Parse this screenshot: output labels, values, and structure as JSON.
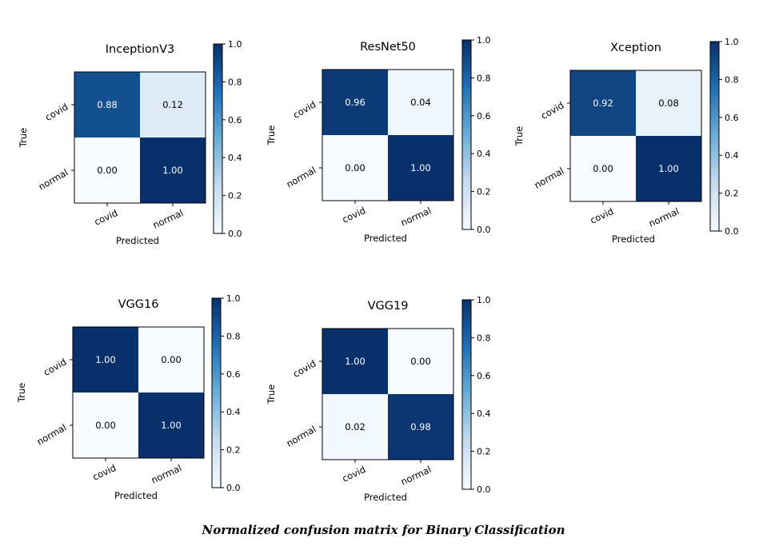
{
  "figure_caption": "Normalized confusion matrix for Binary Classification",
  "colors": {
    "cmap_low": "#f7fbff",
    "cmap_q1": "#c6dbef",
    "cmap_mid": "#6baed6",
    "cmap_q3": "#2171b5",
    "cmap_high": "#08306b",
    "light_text": "#ffffff",
    "dark_text": "#000000"
  },
  "chart_data": [
    {
      "type": "heatmap",
      "title": "InceptionV3",
      "xlabel": "Predicted",
      "ylabel": "True",
      "x_tick_labels": [
        "covid",
        "normal"
      ],
      "y_tick_labels": [
        "covid",
        "normal"
      ],
      "values": [
        [
          0.88,
          0.12
        ],
        [
          0.0,
          1.0
        ]
      ],
      "cell_labels": [
        [
          "0.88",
          "0.12"
        ],
        [
          "0.00",
          "1.00"
        ]
      ],
      "colorbar_range": [
        0.0,
        1.0
      ],
      "colorbar_ticks": [
        "0.0",
        "0.2",
        "0.4",
        "0.6",
        "0.8",
        "1.0"
      ]
    },
    {
      "type": "heatmap",
      "title": "ResNet50",
      "xlabel": "Predicted",
      "ylabel": "True",
      "x_tick_labels": [
        "covid",
        "normal"
      ],
      "y_tick_labels": [
        "covid",
        "normal"
      ],
      "values": [
        [
          0.96,
          0.04
        ],
        [
          0.0,
          1.0
        ]
      ],
      "cell_labels": [
        [
          "0.96",
          "0.04"
        ],
        [
          "0.00",
          "1.00"
        ]
      ],
      "colorbar_range": [
        0.0,
        1.0
      ],
      "colorbar_ticks": [
        "0.0",
        "0.2",
        "0.4",
        "0.6",
        "0.8",
        "1.0"
      ]
    },
    {
      "type": "heatmap",
      "title": "Xception",
      "xlabel": "Predicted",
      "ylabel": "True",
      "x_tick_labels": [
        "covid",
        "normal"
      ],
      "y_tick_labels": [
        "covid",
        "normal"
      ],
      "values": [
        [
          0.92,
          0.08
        ],
        [
          0.0,
          1.0
        ]
      ],
      "cell_labels": [
        [
          "0.92",
          "0.08"
        ],
        [
          "0.00",
          "1.00"
        ]
      ],
      "colorbar_range": [
        0.0,
        1.0
      ],
      "colorbar_ticks": [
        "0.0",
        "0.2",
        "0.4",
        "0.6",
        "0.8",
        "1.0"
      ]
    },
    {
      "type": "heatmap",
      "title": "VGG16",
      "xlabel": "Predicted",
      "ylabel": "True",
      "x_tick_labels": [
        "covid",
        "normal"
      ],
      "y_tick_labels": [
        "covid",
        "normal"
      ],
      "values": [
        [
          1.0,
          0.0
        ],
        [
          0.0,
          1.0
        ]
      ],
      "cell_labels": [
        [
          "1.00",
          "0.00"
        ],
        [
          "0.00",
          "1.00"
        ]
      ],
      "colorbar_range": [
        0.0,
        1.0
      ],
      "colorbar_ticks": [
        "0.0",
        "0.2",
        "0.4",
        "0.6",
        "0.8",
        "1.0"
      ]
    },
    {
      "type": "heatmap",
      "title": "VGG19",
      "xlabel": "Predicted",
      "ylabel": "True",
      "x_tick_labels": [
        "covid",
        "normal"
      ],
      "y_tick_labels": [
        "covid",
        "normal"
      ],
      "values": [
        [
          1.0,
          0.0
        ],
        [
          0.02,
          0.98
        ]
      ],
      "cell_labels": [
        [
          "1.00",
          "0.00"
        ],
        [
          "0.02",
          "0.98"
        ]
      ],
      "colorbar_range": [
        0.0,
        1.0
      ],
      "colorbar_ticks": [
        "0.0",
        "0.2",
        "0.4",
        "0.6",
        "0.8",
        "1.0"
      ]
    }
  ]
}
